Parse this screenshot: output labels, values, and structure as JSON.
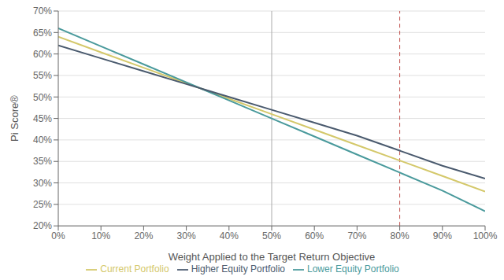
{
  "chart_data": {
    "type": "line",
    "xlabel": "Weight Applied to the Target Return Objective",
    "ylabel": "Pi Score®",
    "x": [
      0,
      0.1,
      0.2,
      0.3,
      0.4,
      0.5,
      0.6,
      0.7,
      0.8,
      0.9,
      1.0
    ],
    "series": [
      {
        "name": "Current Portfolio",
        "color": "#d4c86a",
        "values": [
          0.64,
          0.604,
          0.568,
          0.532,
          0.496,
          0.46,
          0.424,
          0.388,
          0.352,
          0.316,
          0.28
        ]
      },
      {
        "name": "Lower Equity Portfolio",
        "color": "#4a9a9c",
        "values": [
          0.66,
          0.618,
          0.576,
          0.534,
          0.492,
          0.45,
          0.408,
          0.366,
          0.324,
          0.282,
          0.234
        ]
      },
      {
        "name": "Higher Equity Portfolio",
        "color": "#4a5a6e",
        "values": [
          0.62,
          0.59,
          0.56,
          0.53,
          0.5,
          0.47,
          0.44,
          0.41,
          0.375,
          0.34,
          0.31
        ]
      }
    ],
    "xlim": [
      0.0,
      1.0
    ],
    "ylim": [
      0.2,
      0.7
    ],
    "xticks": [
      {
        "value": 0.0,
        "label": "0%"
      },
      {
        "value": 0.1,
        "label": "10%"
      },
      {
        "value": 0.2,
        "label": "20%"
      },
      {
        "value": 0.3,
        "label": "30%"
      },
      {
        "value": 0.4,
        "label": "40%"
      },
      {
        "value": 0.5,
        "label": "50%"
      },
      {
        "value": 0.6,
        "label": "60%"
      },
      {
        "value": 0.7,
        "label": "70%"
      },
      {
        "value": 0.8,
        "label": "80%"
      },
      {
        "value": 0.9,
        "label": "90%"
      },
      {
        "value": 1.0,
        "label": "100%"
      }
    ],
    "yticks": [
      {
        "value": 0.2,
        "label": "20%"
      },
      {
        "value": 0.25,
        "label": "25%"
      },
      {
        "value": 0.3,
        "label": "30%"
      },
      {
        "value": 0.35,
        "label": "35%"
      },
      {
        "value": 0.4,
        "label": "40%"
      },
      {
        "value": 0.45,
        "label": "45%"
      },
      {
        "value": 0.5,
        "label": "50%"
      },
      {
        "value": 0.55,
        "label": "55%"
      },
      {
        "value": 0.6,
        "label": "60%"
      },
      {
        "value": 0.65,
        "label": "65%"
      },
      {
        "value": 0.7,
        "label": "70%"
      }
    ],
    "grid": "y",
    "legend": "bottom",
    "vlines": [
      {
        "x": 0.5,
        "color": "#aaaaaa",
        "line_style": "solid"
      },
      {
        "x": 0.8,
        "color": "#c0504d",
        "line_style": "dashed"
      }
    ]
  }
}
